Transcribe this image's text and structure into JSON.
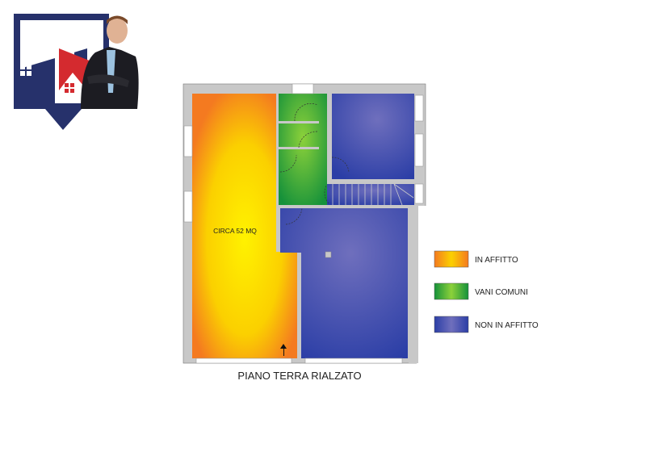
{
  "plan": {
    "room_label": "CIRCA 52 MQ",
    "floor_title": "PIANO TERRA RIALZATO"
  },
  "legend": [
    {
      "label": "IN AFFITTO",
      "color": "#f7a21b"
    },
    {
      "label": "VANI COMUNI",
      "color": "#3aae3a"
    },
    {
      "label": "NON IN AFFITTO",
      "color": "#4a55b5"
    }
  ],
  "colors": {
    "logo_navy": "#26316b",
    "logo_red": "#d42a2f",
    "wall_grey": "#c8c8c8"
  }
}
